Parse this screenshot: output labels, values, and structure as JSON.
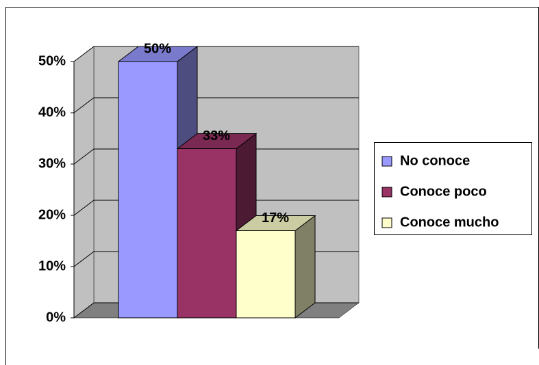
{
  "chart_data": {
    "type": "bar",
    "categories": [
      null
    ],
    "series": [
      {
        "name": "No conoce",
        "color": "#9999ff",
        "values": [
          50
        ],
        "value_labels": [
          "50%"
        ]
      },
      {
        "name": "Conoce poco",
        "color": "#993366",
        "values": [
          33
        ],
        "value_labels": [
          "33%"
        ]
      },
      {
        "name": "Conoce mucho",
        "color": "#ffffcc",
        "values": [
          17
        ],
        "value_labels": [
          "17%"
        ]
      }
    ],
    "ylim": [
      0,
      50
    ],
    "yticks": [
      {
        "value": 0,
        "label": "0%"
      },
      {
        "value": 10,
        "label": "10%"
      },
      {
        "value": 20,
        "label": "20%"
      },
      {
        "value": 30,
        "label": "30%"
      },
      {
        "value": 40,
        "label": "40%"
      },
      {
        "value": 50,
        "label": "50%"
      }
    ],
    "grid": true,
    "legend": "right",
    "three_d": true
  }
}
